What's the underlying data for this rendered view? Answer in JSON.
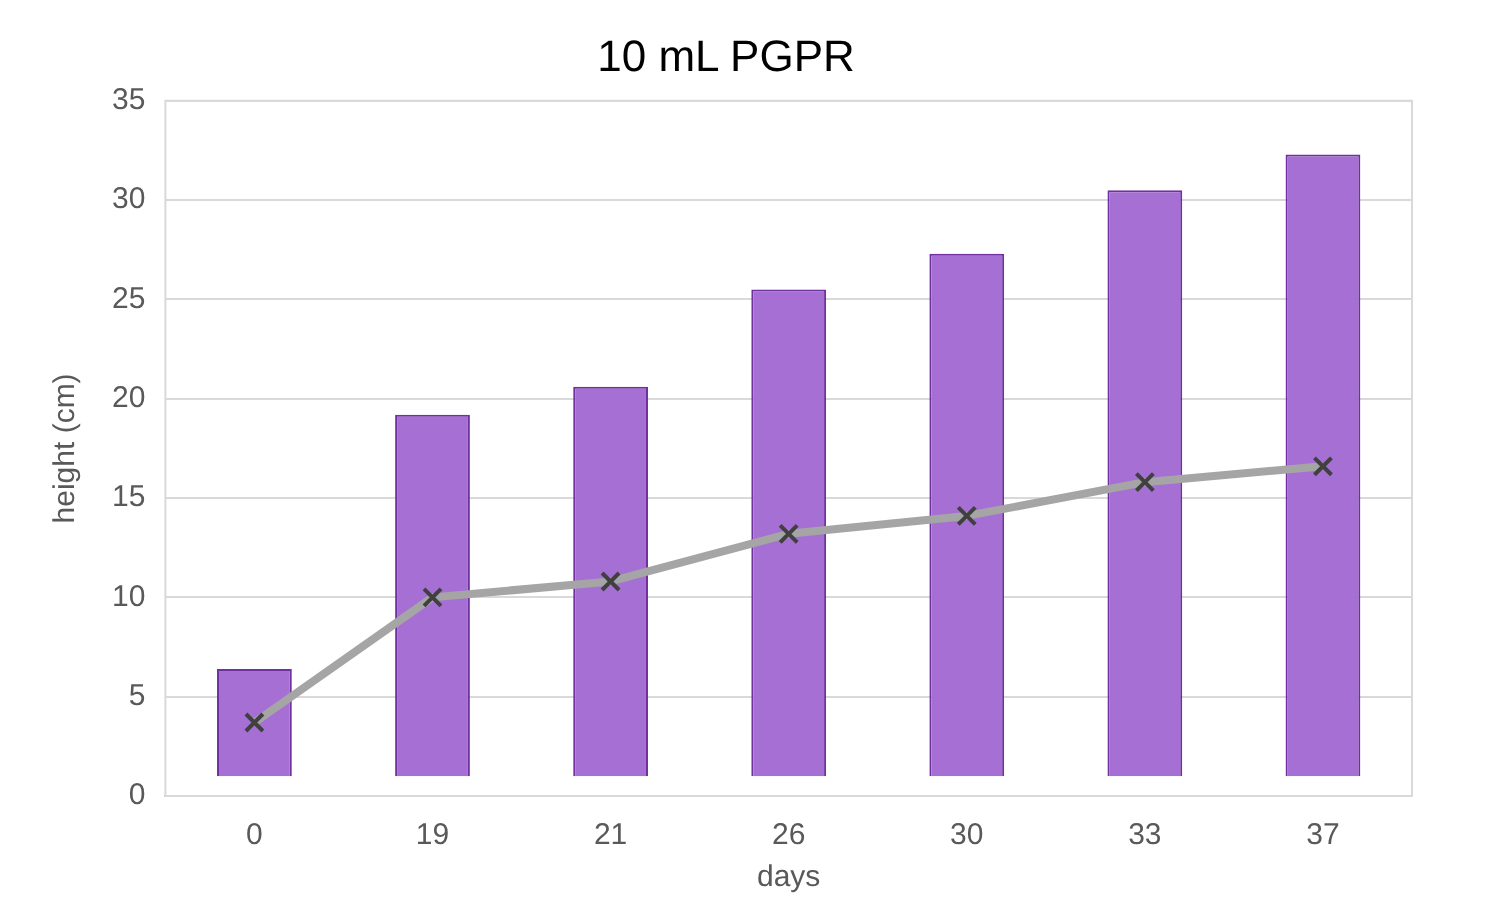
{
  "chart_data": {
    "type": "bar",
    "title": "10 mL PGPR",
    "xlabel": "days",
    "ylabel": "height (cm)",
    "categories": [
      "0",
      "19",
      "21",
      "26",
      "30",
      "33",
      "37"
    ],
    "series": [
      {
        "color": "#a66fd3",
        "base": [
          1,
          1,
          1,
          1,
          1,
          1,
          1
        ],
        "values": [
          5.4,
          18.2,
          19.6,
          24.5,
          26.3,
          29.5,
          31.3
        ]
      },
      {
        "type": "line",
        "color": "#a5a5a5",
        "marker": "cross",
        "values": [
          3.7,
          10.0,
          10.8,
          13.2,
          14.1,
          15.8,
          16.6
        ]
      }
    ],
    "ylim": [
      0,
      35
    ],
    "yticks": [
      0,
      5,
      10,
      15,
      20,
      25,
      30,
      35
    ],
    "grid": "y",
    "legend": false
  }
}
